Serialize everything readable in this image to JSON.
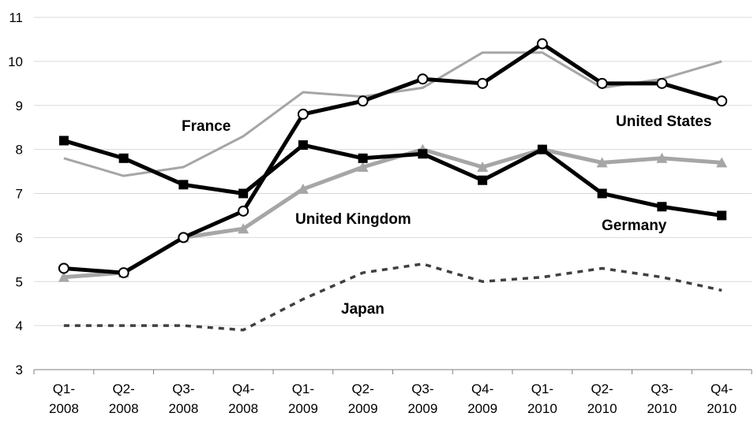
{
  "chart_data": {
    "type": "line",
    "categories": [
      "Q1-2008",
      "Q2-2008",
      "Q3-2008",
      "Q4-2008",
      "Q1-2009",
      "Q2-2009",
      "Q3-2009",
      "Q4-2009",
      "Q1-2010",
      "Q2-2010",
      "Q3-2010",
      "Q4-2010"
    ],
    "category_lines": [
      [
        "Q1-",
        "2008"
      ],
      [
        "Q2-",
        "2008"
      ],
      [
        "Q3-",
        "2008"
      ],
      [
        "Q4-",
        "2008"
      ],
      [
        "Q1-",
        "2009"
      ],
      [
        "Q2-",
        "2009"
      ],
      [
        "Q3-",
        "2009"
      ],
      [
        "Q4-",
        "2009"
      ],
      [
        "Q1-",
        "2010"
      ],
      [
        "Q2-",
        "2010"
      ],
      [
        "Q3-",
        "2010"
      ],
      [
        "Q4-",
        "2010"
      ]
    ],
    "ylim": [
      3,
      11
    ],
    "yticks": [
      3,
      4,
      5,
      6,
      7,
      8,
      9,
      10,
      11
    ],
    "grid": true,
    "legend": "none",
    "series": [
      {
        "name": "France",
        "color": "#a6a6a6",
        "style": "thin",
        "marker": "none",
        "values": [
          7.8,
          7.4,
          7.6,
          8.3,
          9.3,
          9.2,
          9.4,
          10.2,
          10.2,
          9.4,
          9.6,
          10.0
        ]
      },
      {
        "name": "United Kingdom",
        "color": "#a6a6a6",
        "style": "thick",
        "marker": "triangle",
        "values": [
          5.1,
          5.2,
          6.0,
          6.2,
          7.1,
          7.6,
          8.0,
          7.6,
          8.0,
          7.7,
          7.8,
          7.7
        ]
      },
      {
        "name": "Japan",
        "color": "#404040",
        "style": "dashed",
        "marker": "none",
        "values": [
          4.0,
          4.0,
          4.0,
          3.9,
          4.6,
          5.2,
          5.4,
          5.0,
          5.1,
          5.3,
          5.1,
          4.8
        ]
      },
      {
        "name": "Germany",
        "color": "#000000",
        "style": "thick",
        "marker": "square",
        "values": [
          8.2,
          7.8,
          7.2,
          7.0,
          8.1,
          7.8,
          7.9,
          7.3,
          8.0,
          7.0,
          6.7,
          6.5
        ]
      },
      {
        "name": "United States",
        "color": "#000000",
        "style": "thick",
        "marker": "circle",
        "values": [
          5.3,
          5.2,
          6.0,
          6.6,
          8.8,
          9.1,
          9.6,
          9.5,
          10.4,
          9.5,
          9.5,
          9.1
        ]
      }
    ],
    "annotations": [
      {
        "text": "France",
        "series": "France"
      },
      {
        "text": "United States",
        "series": "United States"
      },
      {
        "text": "United Kingdom",
        "series": "United Kingdom"
      },
      {
        "text": "Germany",
        "series": "Germany"
      },
      {
        "text": "Japan",
        "series": "Japan"
      }
    ]
  }
}
